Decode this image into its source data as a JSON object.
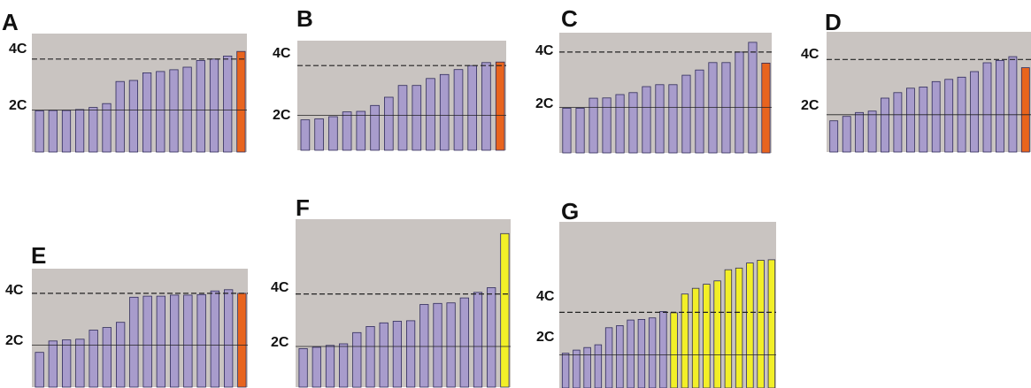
{
  "colors": {
    "background": "#ffffff",
    "plot_bg": "#c9c4c1",
    "bar_normal": "#a89ccc",
    "bar_orange": "#e8641e",
    "bar_yellow": "#f2ef28",
    "bar_stroke": "#2f2b5a"
  },
  "chart_data": [
    {
      "type": "bar",
      "panel_label": "A",
      "reference_labels": [
        "4C",
        "2C"
      ],
      "reference_values": [
        4,
        2
      ],
      "values": [
        1.97,
        1.98,
        1.98,
        2.02,
        2.1,
        2.25,
        3.12,
        3.16,
        3.46,
        3.51,
        3.58,
        3.68,
        3.94,
        4.0,
        4.12,
        4.3
      ],
      "highlight": [
        "normal",
        "normal",
        "normal",
        "normal",
        "normal",
        "normal",
        "normal",
        "normal",
        "normal",
        "normal",
        "normal",
        "normal",
        "normal",
        "normal",
        "normal",
        "orange"
      ],
      "ylim": [
        0.35,
        5.0
      ]
    },
    {
      "type": "bar",
      "panel_label": "B",
      "reference_labels": [
        "4C",
        "2C"
      ],
      "reference_values": [
        4,
        2
      ],
      "values": [
        1.82,
        1.86,
        1.95,
        2.14,
        2.16,
        2.4,
        2.73,
        3.2,
        3.2,
        3.48,
        3.64,
        3.84,
        4.0,
        4.12,
        4.14
      ],
      "highlight": [
        "normal",
        "normal",
        "normal",
        "normal",
        "normal",
        "normal",
        "normal",
        "normal",
        "normal",
        "normal",
        "normal",
        "normal",
        "normal",
        "normal",
        "orange"
      ],
      "ylim": [
        0.6,
        5.0
      ]
    },
    {
      "type": "bar",
      "panel_label": "C",
      "reference_labels": [
        "4C",
        "2C"
      ],
      "reference_values": [
        4,
        2
      ],
      "values": [
        1.97,
        1.97,
        2.33,
        2.34,
        2.46,
        2.53,
        2.75,
        2.82,
        2.82,
        3.16,
        3.35,
        3.62,
        3.62,
        4.0,
        4.35,
        3.6
      ],
      "highlight": [
        "normal",
        "normal",
        "normal",
        "normal",
        "normal",
        "normal",
        "normal",
        "normal",
        "normal",
        "normal",
        "normal",
        "normal",
        "normal",
        "normal",
        "normal",
        "orange"
      ],
      "ylim": [
        0.35,
        4.7
      ]
    },
    {
      "type": "bar",
      "panel_label": "D",
      "reference_labels": [
        "4C",
        "2C"
      ],
      "reference_values": [
        4,
        2
      ],
      "values": [
        1.78,
        1.94,
        2.08,
        2.13,
        2.6,
        2.8,
        2.96,
        3.0,
        3.2,
        3.28,
        3.36,
        3.56,
        3.88,
        3.96,
        4.1,
        3.7
      ],
      "highlight": [
        "normal",
        "normal",
        "normal",
        "normal",
        "normal",
        "normal",
        "normal",
        "normal",
        "normal",
        "normal",
        "normal",
        "normal",
        "normal",
        "normal",
        "normal",
        "orange"
      ],
      "ylim": [
        0.65,
        5.0
      ]
    },
    {
      "type": "bar",
      "panel_label": "E",
      "reference_labels": [
        "4C",
        "2C"
      ],
      "reference_values": [
        4,
        2
      ],
      "values": [
        1.72,
        2.16,
        2.2,
        2.23,
        2.58,
        2.68,
        2.88,
        3.85,
        3.89,
        3.89,
        3.93,
        3.93,
        3.95,
        4.09,
        4.14,
        4.0
      ],
      "highlight": [
        "normal",
        "normal",
        "normal",
        "normal",
        "normal",
        "normal",
        "normal",
        "normal",
        "normal",
        "normal",
        "normal",
        "normal",
        "normal",
        "normal",
        "normal",
        "orange"
      ],
      "ylim": [
        0.38,
        4.95
      ]
    },
    {
      "type": "bar",
      "panel_label": "F",
      "reference_labels": [
        "4C",
        "2C"
      ],
      "reference_values": [
        4,
        2
      ],
      "values": [
        1.92,
        1.97,
        2.04,
        2.1,
        2.53,
        2.76,
        2.9,
        2.96,
        2.98,
        3.6,
        3.64,
        3.66,
        3.85,
        4.06,
        4.24,
        6.3
      ],
      "highlight": [
        "normal",
        "normal",
        "normal",
        "normal",
        "normal",
        "normal",
        "normal",
        "normal",
        "normal",
        "normal",
        "normal",
        "normal",
        "normal",
        "normal",
        "normal",
        "yellow"
      ],
      "ylim": [
        0.45,
        6.85
      ]
    },
    {
      "type": "bar",
      "panel_label": "G",
      "reference_labels": [
        "4C",
        "2C"
      ],
      "reference_values": [
        4,
        2
      ],
      "values": [
        2.08,
        2.23,
        2.35,
        2.48,
        3.28,
        3.38,
        3.64,
        3.67,
        3.74,
        4.04,
        3.98,
        4.86,
        5.13,
        5.32,
        5.48,
        6.0,
        6.08,
        6.32,
        6.45,
        6.47
      ],
      "highlight": [
        "normal",
        "normal",
        "normal",
        "normal",
        "normal",
        "normal",
        "normal",
        "normal",
        "normal",
        "normal",
        "yellow",
        "yellow",
        "yellow",
        "yellow",
        "yellow",
        "yellow",
        "yellow",
        "yellow",
        "yellow",
        "yellow"
      ],
      "ylim": [
        0.45,
        8.25
      ]
    }
  ]
}
